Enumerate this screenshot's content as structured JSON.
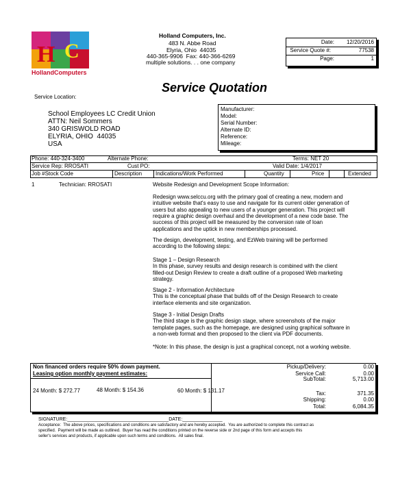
{
  "company": {
    "logo_text": "HollandComputers",
    "name": "Holland Computers, Inc.",
    "address": "483 N. Abbe Road",
    "city": "Elyria, Ohio  44035",
    "phone": "440-365-9906  Fax: 440-366-6269",
    "slogan": "multiple solutions. . . one company"
  },
  "info": [
    {
      "label": "Date:",
      "value": "12/20/2016"
    },
    {
      "label": "Service Quote #:",
      "value": "77538"
    },
    {
      "label": "Page:",
      "value": "1"
    }
  ],
  "title": "Service Quotation",
  "location_label": "Service Location:",
  "location": [
    "School Employees LC Credit Union",
    "ATTN: Neil Sommers",
    "340 GRISWOLD ROAD",
    "ELYRIA, OHIO  44035",
    "USA"
  ],
  "equipment": [
    "Manufacturer:",
    "Model:",
    "Serial Number:",
    "Alternate ID:",
    "Reference:",
    "Mileage:"
  ],
  "row1": {
    "phone": "Phone: 440-324-3400",
    "alt_phone": "Alternate Phone:",
    "terms": "Terms: NET 20"
  },
  "row2": {
    "rep": "Service Rep: RROSATI",
    "po": "Cust PO:",
    "valid": "Valid Date: 1/4/2017"
  },
  "columns": [
    "Job #Stock Code",
    "Description",
    "Indications/Work Performed",
    "Quantity",
    "Price",
    "Extended"
  ],
  "item": {
    "number": "1",
    "technician": "Technician: RROSATI",
    "blocks": [
      [
        "Website Redesign and Development Scope Information:"
      ],
      [
        "Redesign www.selccu.org with the primary goal of creating a new, modern and",
        "intuitive website that's easy to use and navigate for its current older generation of",
        "users but also appealing to new users of a younger generation. This project will",
        "require a graphic design overhaul and the development of a new code base. The",
        "success of this project will be measured by the conversion rate of loan",
        "applications and the uptick in new memberships processed."
      ],
      [
        "The design, development, testing, and EzWeb training will be performed",
        "according to the following steps:"
      ],
      [
        "Stage 1 – Design Research",
        "In this phase, survey results and design research is combined with the client",
        "filled-out Design Review to create a draft outline of a proposed Web marketing",
        "strategy."
      ],
      [
        "Stage 2 - Information Architecture",
        "This is the conceptual phase that builds off of the Design Research to create",
        "interface elements and site organization."
      ],
      [
        "Stage 3 - Initial Design Drafts",
        "The third stage is the graphic design stage, where screenshots of the major",
        "template pages, such as the homepage, are designed using graphical software in",
        "a non-web format and then proposed to the client via PDF documents."
      ],
      [
        "*Note: In this phase, the design is just a graphical concept, not a working website."
      ]
    ]
  },
  "terms": {
    "down_payment": "Non financed orders require 50% down payment.",
    "leasing": "Leasing option monthly payment estimates:",
    "options": [
      "24 Month: $ 272.77",
      "48 Month: $ 154.36",
      "60 Month: $ 131.17"
    ]
  },
  "totals": [
    {
      "label": "Pickup/Delivery:",
      "value": "0.00"
    },
    {
      "label": "Service Call:",
      "value": "0.00"
    },
    {
      "label": "SubTotal:",
      "value": "5,713.00"
    },
    {
      "label": "Tax:",
      "value": "371.35"
    },
    {
      "label": "Shipping:",
      "value": "0.00"
    },
    {
      "label": "Total:",
      "value": "6,084.35"
    }
  ],
  "signature": {
    "sign": "SIGNATURE:______________________________________DATE:_______________",
    "acceptance": [
      "Acceptance:  The above prices, specifications and conditions are satisfactory and are hereby accepted.  You are authorized to complete this contract as",
      "specified.  Payment will be made as outlined.  Buyer has read the conditions printed on the reverse side or 2nd page of this form and accepts this",
      "seller's services and products, if applicable upon such terms and conditions.  All sales final."
    ]
  }
}
